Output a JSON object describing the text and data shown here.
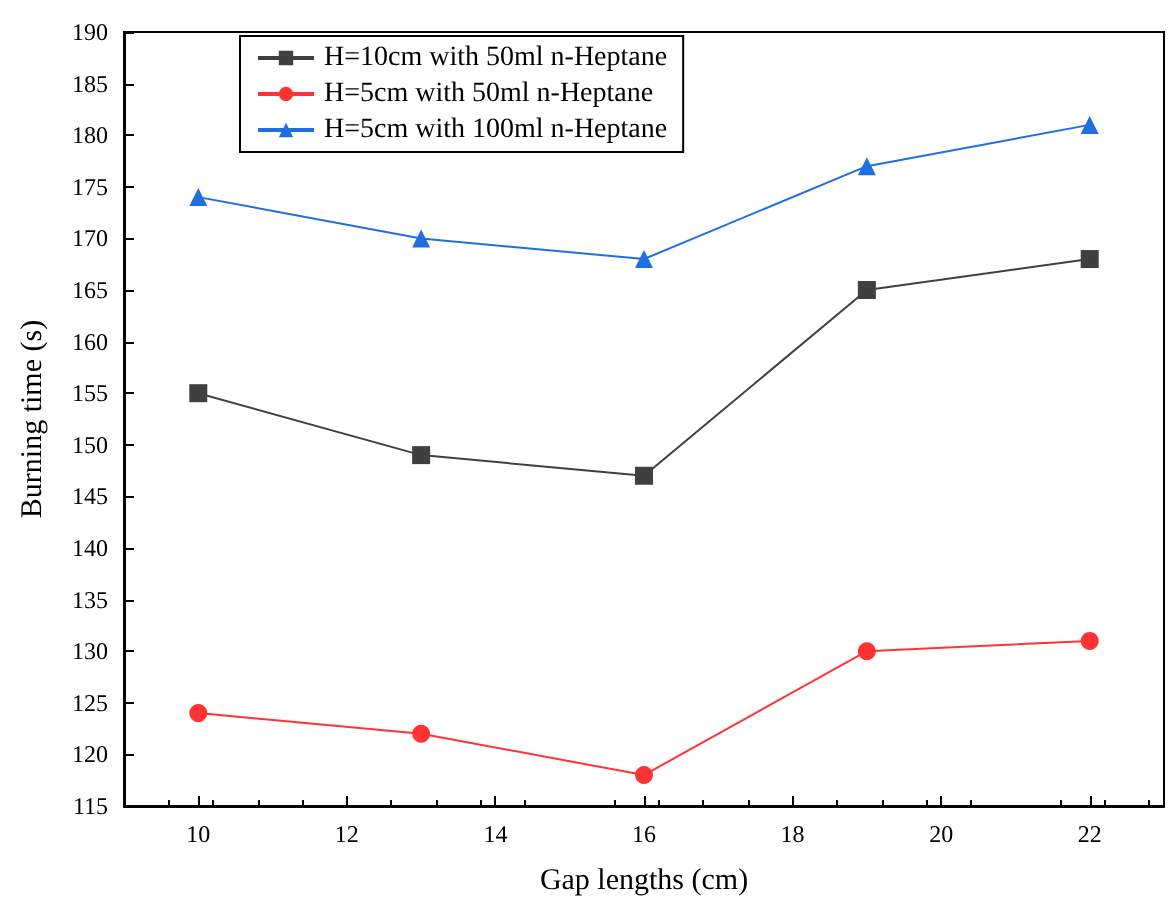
{
  "chart_data": {
    "type": "line",
    "xlabel": "Gap lengths (cm)",
    "ylabel": "Burning time (s)",
    "x": [
      10,
      13,
      16,
      19,
      22
    ],
    "series": [
      {
        "name": "H=10cm with 50ml n-Heptane",
        "color": "#404040",
        "marker": "square",
        "values": [
          155,
          149,
          147,
          165,
          168
        ]
      },
      {
        "name": "H=5cm with 50ml n-Heptane",
        "color": "#ff3333",
        "marker": "circle",
        "values": [
          124,
          122,
          118,
          130,
          131
        ]
      },
      {
        "name": "H=5cm with 100ml n-Heptane",
        "color": "#1f6fe0",
        "marker": "triangle",
        "values": [
          174,
          170,
          168,
          177,
          181
        ]
      }
    ],
    "xlim": [
      9,
      23
    ],
    "xticks": [
      10,
      12,
      14,
      16,
      18,
      20,
      22
    ],
    "ylim": [
      115,
      190
    ],
    "yticks": [
      115,
      120,
      125,
      130,
      135,
      140,
      145,
      150,
      155,
      160,
      165,
      170,
      175,
      180,
      185,
      190
    ],
    "grid": false,
    "legend": "top left",
    "line_style": "solid"
  }
}
